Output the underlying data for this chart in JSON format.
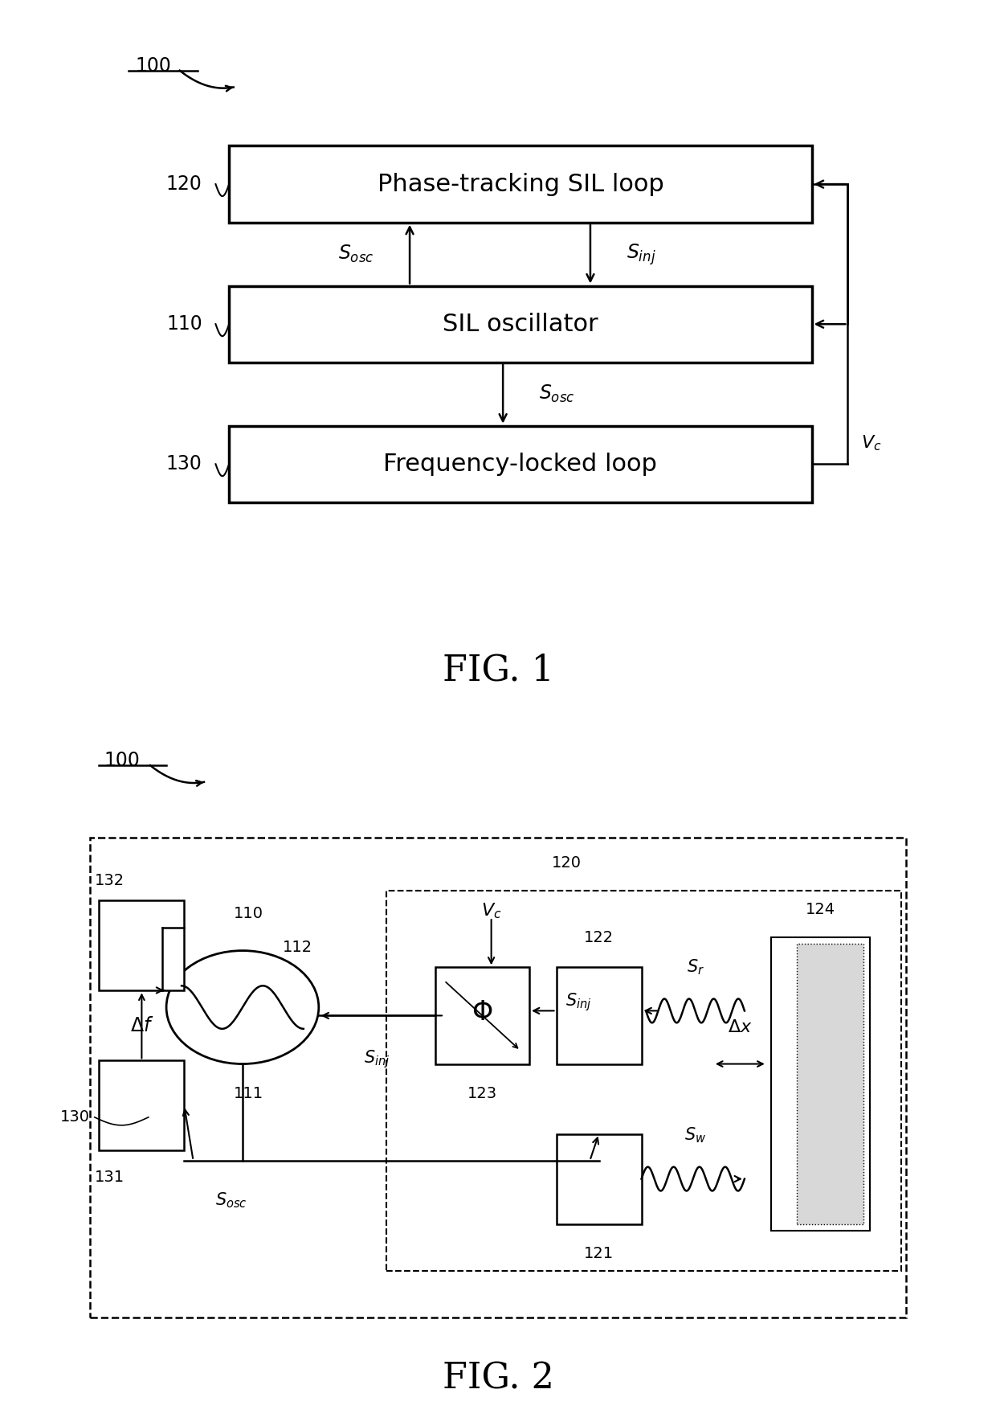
{
  "bg_color": "#ffffff",
  "fig1_title": "FIG. 1",
  "fig2_title": "FIG. 2",
  "box_texts": {
    "120": "Phase-tracking SIL loop",
    "110": "SIL oscillator",
    "130": "Frequency-locked loop"
  }
}
